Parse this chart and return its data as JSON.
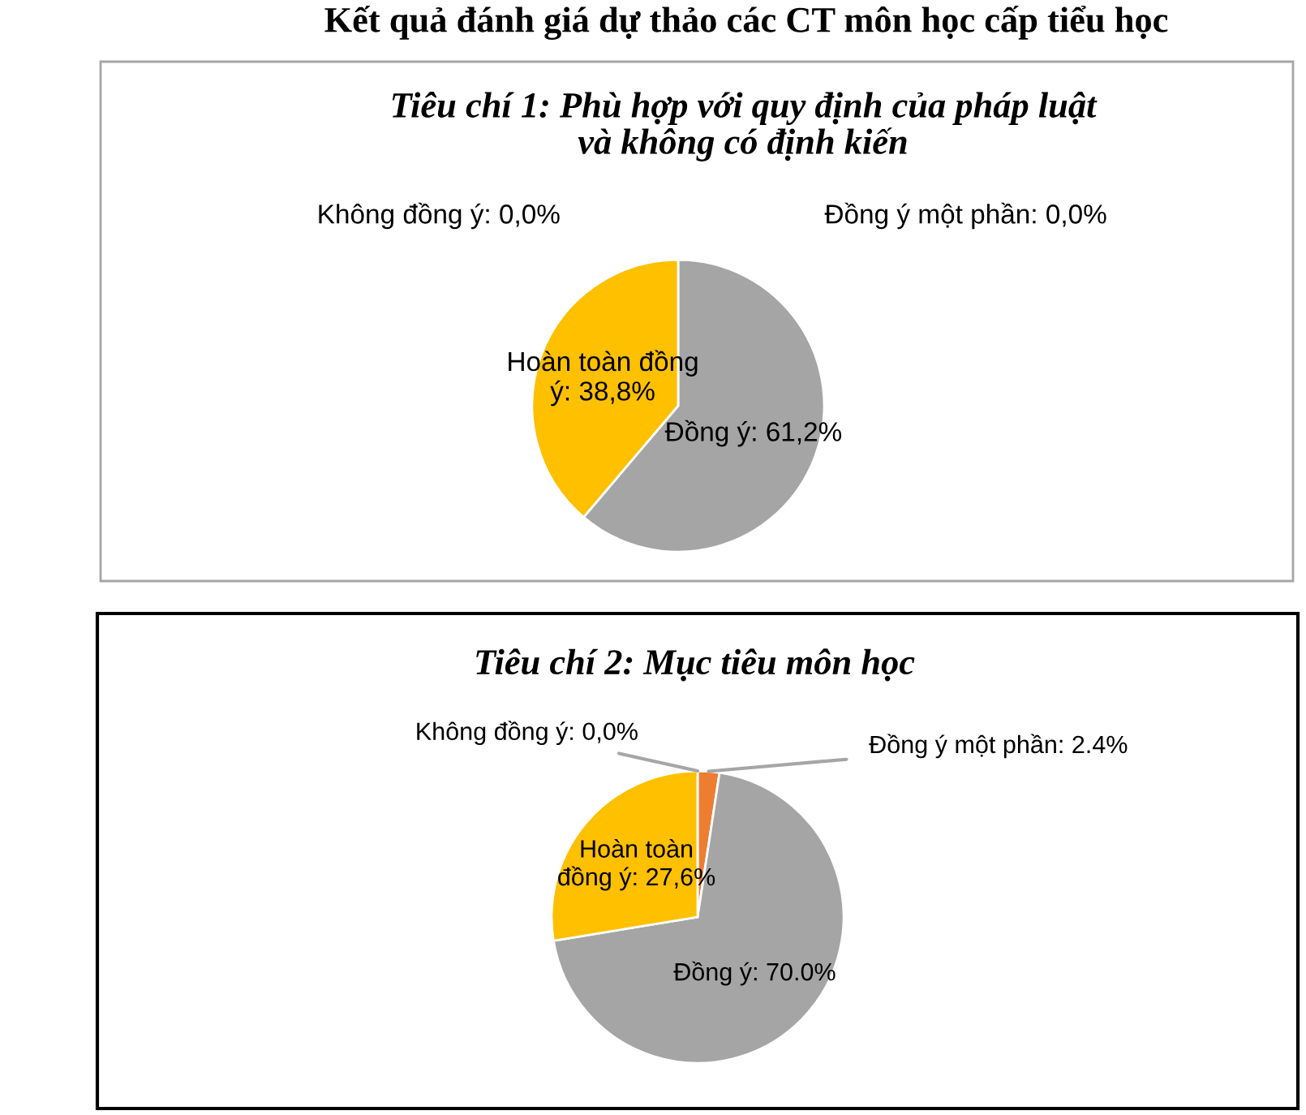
{
  "chart_data": [
    {
      "type": "pie",
      "title": "Tiêu chí 1: Phù hợp với quy định của pháp luật\nvà không có định kiến",
      "annotations": [
        "Kết quả đánh giá dự thảo các CT môn học cấp tiểu học"
      ],
      "categories": [
        "Không đồng ý",
        "Đồng ý một phần",
        "Đồng ý",
        "Hoàn toàn đồng ý"
      ],
      "values": [
        0.0,
        0.0,
        61.2,
        38.8
      ],
      "value_labels": [
        ": 0,0%",
        ": 0,0%",
        ": 61,2%",
        ": 38,8%"
      ],
      "colors": [
        "#4472c4",
        "#ed7d31",
        "#a5a5a5",
        "#ffc000"
      ]
    },
    {
      "type": "pie",
      "title": "Tiêu chí 2: Mục tiêu môn học",
      "categories": [
        "Không đồng ý",
        "Đồng ý một phần",
        "Đồng ý",
        "Hoàn toàn đồng ý"
      ],
      "values": [
        0.0,
        2.4,
        70.0,
        27.6
      ],
      "value_labels": [
        ": 0,0%",
        ": 2.4%",
        ": 70.0%",
        ": 27,6%"
      ],
      "colors": [
        "#4472c4",
        "#ed7d31",
        "#a5a5a5",
        "#ffc000"
      ]
    }
  ]
}
